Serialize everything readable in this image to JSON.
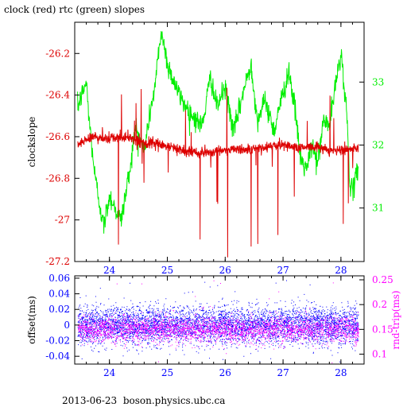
{
  "title": "clock (red) rtc (green) slopes",
  "footer": "2013-06-23  boson.physics.ubc.ca",
  "colors": {
    "clock": "#dd0000",
    "rtc": "#00ee00",
    "offset": "#0000ff",
    "rndtrip": "#ff00ff",
    "axis": "#000000"
  },
  "chart_data": [
    {
      "type": "line",
      "ylabel": "clockslope",
      "y2label": "",
      "xlim": [
        23.4,
        28.4
      ],
      "ylim": [
        -27.2,
        -26.05
      ],
      "y2lim": [
        30.15,
        33.95
      ],
      "x_ticks": [
        24,
        25,
        26,
        27,
        28
      ],
      "x_tick_labels": [
        "24",
        "25",
        "26",
        "27",
        "28"
      ],
      "y_ticks": [
        -27.2,
        -27.0,
        -26.8,
        -26.6,
        -26.4,
        -26.2
      ],
      "y_tick_labels": [
        "-27.2",
        "-27",
        "-26.8",
        "-26.6",
        "-26.4",
        "-26.2"
      ],
      "y2_ticks": [
        31,
        32,
        33
      ],
      "y2_tick_labels": [
        "31",
        "32",
        "33"
      ],
      "series": [
        {
          "name": "clock",
          "axis": "left",
          "x": [
            23.45,
            23.7,
            24.0,
            24.3,
            24.6,
            24.9,
            25.2,
            25.5,
            25.8,
            26.1,
            26.4,
            26.7,
            27.0,
            27.3,
            27.6,
            27.9,
            28.1,
            28.3
          ],
          "y": [
            -26.64,
            -26.6,
            -26.61,
            -26.6,
            -26.63,
            -26.64,
            -26.66,
            -26.68,
            -26.67,
            -26.66,
            -26.66,
            -26.65,
            -26.64,
            -26.65,
            -26.65,
            -26.67,
            -26.66,
            -26.66
          ]
        },
        {
          "name": "rtc",
          "axis": "right",
          "x": [
            23.45,
            23.6,
            23.65,
            23.75,
            23.9,
            24.0,
            24.2,
            24.35,
            24.45,
            24.6,
            24.7,
            24.8,
            24.85,
            24.9,
            25.0,
            25.2,
            25.4,
            25.6,
            25.75,
            25.85,
            26.0,
            26.15,
            26.3,
            26.45,
            26.55,
            26.7,
            26.85,
            26.9,
            27.0,
            27.1,
            27.2,
            27.3,
            27.4,
            27.5,
            27.6,
            27.7,
            27.8,
            27.9,
            28.0,
            28.1,
            28.15,
            28.2,
            28.3
          ],
          "y": [
            32.6,
            33.0,
            32.4,
            31.5,
            30.7,
            31.2,
            30.8,
            31.6,
            32.3,
            31.9,
            32.5,
            33.0,
            33.5,
            33.8,
            33.3,
            32.8,
            32.5,
            32.3,
            33.1,
            32.6,
            32.9,
            32.2,
            32.8,
            33.3,
            32.4,
            32.7,
            32.2,
            32.5,
            32.8,
            33.2,
            32.6,
            31.8,
            31.6,
            32.0,
            31.7,
            32.4,
            32.3,
            32.9,
            33.5,
            32.5,
            31.5,
            31.2,
            31.7
          ]
        }
      ]
    },
    {
      "type": "scatter",
      "ylabel": "offset(ms)",
      "y2label": "rnd-trip(ms)",
      "xlim": [
        23.4,
        28.4
      ],
      "ylim": [
        -0.05,
        0.063
      ],
      "y2lim": [
        0.08,
        0.258
      ],
      "x_ticks": [
        24,
        25,
        26,
        27,
        28
      ],
      "x_tick_labels": [
        "24",
        "25",
        "26",
        "27",
        "28"
      ],
      "y_ticks": [
        -0.04,
        -0.02,
        0,
        0.02,
        0.04,
        0.06
      ],
      "y_tick_labels": [
        "-0.04",
        "-0.02",
        "0",
        "0.02",
        "0.04",
        "0.06"
      ],
      "y2_ticks": [
        0.1,
        0.15,
        0.2,
        0.25
      ],
      "y2_tick_labels": [
        "0.1",
        "0.15",
        "0.2",
        "0.25"
      ],
      "series": [
        {
          "name": "offset",
          "axis": "left",
          "x_range": [
            23.45,
            28.3
          ],
          "center": 0.0,
          "spread": 0.02,
          "max_outlier": 0.06
        },
        {
          "name": "rnd-trip",
          "axis": "right",
          "x_range": [
            23.45,
            28.3
          ],
          "center": 0.15,
          "spread": 0.022,
          "max_outlier": 0.25
        }
      ]
    }
  ]
}
